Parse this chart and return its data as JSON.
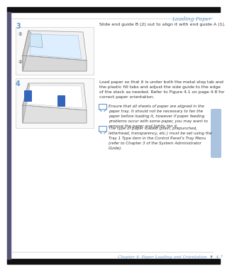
{
  "bg_color": "#ffffff",
  "header_text": "Loading Paper",
  "header_color": "#6699cc",
  "footer_text": "Chapter 4: Paper Loading and Orientation  ♦  4-7",
  "footer_color": "#6699cc",
  "step3_num": "3",
  "step3_text": "Slide end guide B (2) out to align it with end guide A (1).",
  "step4_num": "4",
  "step4_text": "Load paper so that it is under both the metal stop tab and\nthe plastic fill tabs and adjust the side guide to the edge\nof the stack as needed. Refer to Figure 4.1 on page 4-8 for\ncorrect paper orientation.",
  "note1_text": "Ensure that all sheets of paper are aligned in the\npaper tray. It should not be necessary to fan the\npaper before loading it, however if paper feeding\nproblems occur with some paper, you may want to\nremove the paper and lightly fan it.",
  "note2_text": "The type of paper loaded (plain, prepunched,\nletterhead, transparency, etc.) must be set using the\nTray 1 Type item in the Control Panel’s Tray Menu\n(refer to Chapter 3 of the System Administrator\nGuide).",
  "step_num_color": "#6699cc",
  "step_text_color": "#333333",
  "note_text_color": "#333333",
  "note_icon_color": "#6699cc",
  "sidebar_color": "#aac4e0",
  "top_bar_color": "#111111",
  "bottom_bar_color": "#111111",
  "left_bar_color": "#555577",
  "tray_line_color": "#999999",
  "tray_fill_color": "#eeeeee",
  "tray_inner_color": "#d8eaf8",
  "blue_tab_color": "#3366bb",
  "label_color": "#333333"
}
